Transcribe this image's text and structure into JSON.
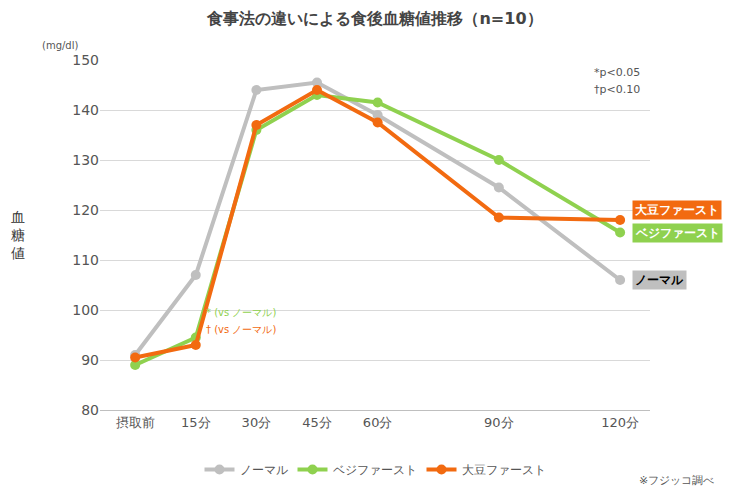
{
  "chart_data": {
    "type": "line",
    "title": "食事法の違いによる食後血糖値推移（n=10）",
    "y_label": "血糖値",
    "y_unit": "(mg/dl)",
    "x": [
      0,
      15,
      30,
      45,
      60,
      90,
      120
    ],
    "xlim": [
      -8.7,
      127.4
    ],
    "xticks": [
      {
        "value": 0,
        "label": "摂取前"
      },
      {
        "value": 15,
        "label": "15分"
      },
      {
        "value": 30,
        "label": "30分"
      },
      {
        "value": 45,
        "label": "45分"
      },
      {
        "value": 60,
        "label": "60分"
      },
      {
        "value": 90,
        "label": "90分"
      },
      {
        "value": 120,
        "label": "120分"
      }
    ],
    "ylim": [
      80,
      150
    ],
    "yticks": [
      80,
      90,
      100,
      110,
      120,
      130,
      140,
      150
    ],
    "grid": true,
    "legend": "bottom",
    "marker": "circle",
    "series": [
      {
        "name": "ノーマル",
        "color": "#bfbfbf",
        "values": [
          91,
          107,
          144,
          145.5,
          139,
          124.5,
          106
        ]
      },
      {
        "name": "ベジファースト",
        "color": "#8fd14f",
        "values": [
          89,
          94.5,
          136,
          143,
          141.5,
          130,
          115.5
        ]
      },
      {
        "name": "大豆ファースト",
        "color": "#f26a10",
        "values": [
          90.5,
          93,
          137,
          144,
          137.5,
          118.5,
          118
        ]
      }
    ],
    "annotations": [
      {
        "text": "*p<0.05"
      },
      {
        "text": "†p<0.10"
      },
      {
        "text": "* (vs ノーマル)",
        "color": "#8fd14f"
      },
      {
        "text": "† (vs ノーマル)",
        "color": "#f26a10"
      },
      {
        "text": "※フジッコ調べ"
      }
    ]
  }
}
